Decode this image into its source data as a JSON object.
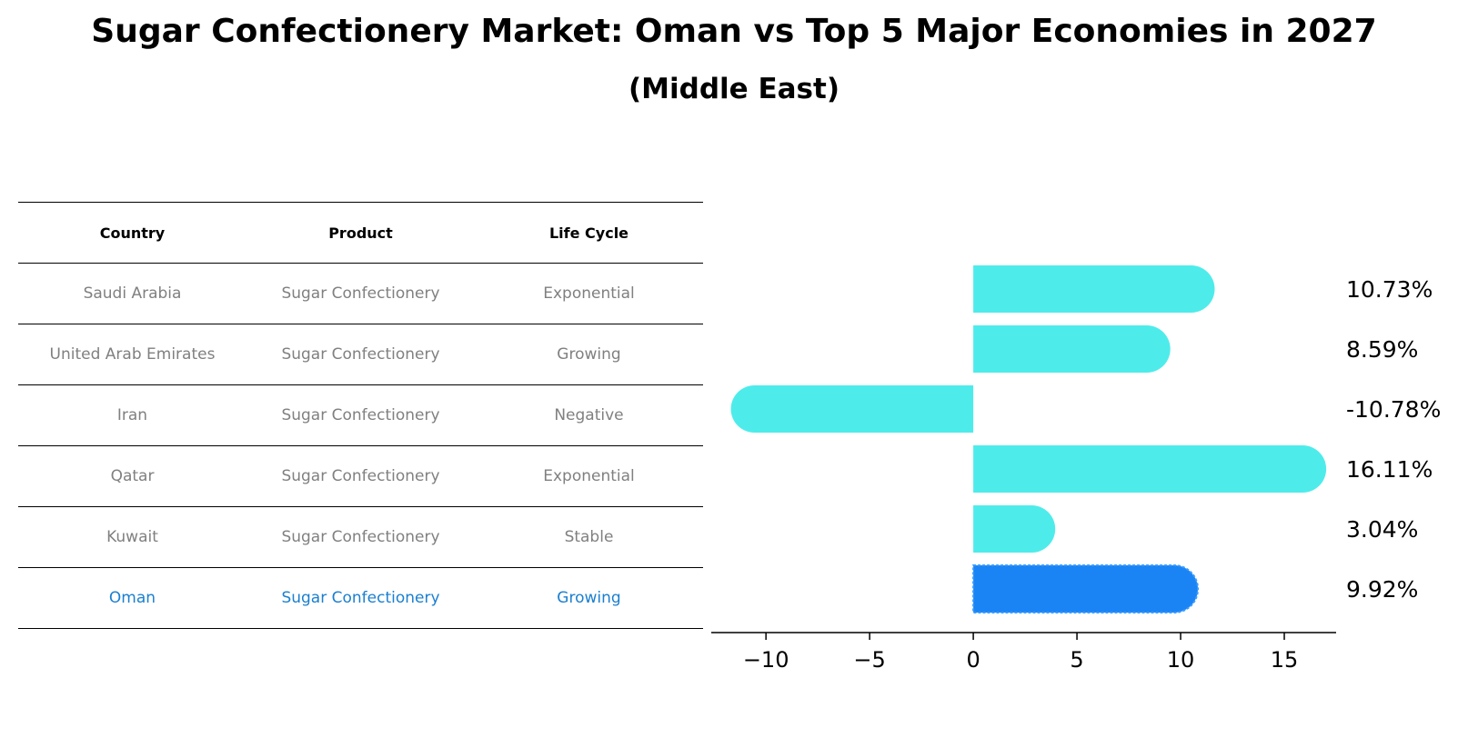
{
  "title": "Sugar Confectionery Market: Oman vs Top 5 Major Economies in 2027",
  "subtitle": "(Middle East)",
  "table": {
    "headers": [
      "Country",
      "Product",
      "Life Cycle"
    ],
    "rows": [
      [
        "Saudi Arabia",
        "Sugar Confectionery",
        "Exponential"
      ],
      [
        "United Arab Emirates",
        "Sugar Confectionery",
        "Growing"
      ],
      [
        "Iran",
        "Sugar Confectionery",
        "Negative"
      ],
      [
        "Qatar",
        "Sugar Confectionery",
        "Exponential"
      ],
      [
        "Kuwait",
        "Sugar Confectionery",
        "Stable"
      ],
      [
        "Oman",
        "Sugar Confectionery",
        "Growing"
      ]
    ],
    "highlight_row": 5,
    "highlight_color": "#1a7fd0"
  },
  "chart_data": {
    "type": "bar",
    "orientation": "horizontal",
    "categories": [
      "Saudi Arabia",
      "United Arab Emirates",
      "Iran",
      "Qatar",
      "Kuwait",
      "Oman"
    ],
    "values": [
      10.73,
      8.59,
      -10.78,
      16.11,
      3.04,
      9.92
    ],
    "value_labels": [
      "10.73%",
      "8.59%",
      "-10.78%",
      "16.11%",
      "3.04%",
      "9.92%"
    ],
    "xlim": [
      -12.2,
      17.5
    ],
    "xticks": [
      -10,
      -5,
      0,
      5,
      10,
      15
    ],
    "xtick_labels": [
      "−10",
      "−5",
      "0",
      "5",
      "10",
      "15"
    ],
    "bar_color": "#4deceb",
    "highlight_color": "#1a84f5",
    "highlight_index": 5,
    "grid": false
  }
}
